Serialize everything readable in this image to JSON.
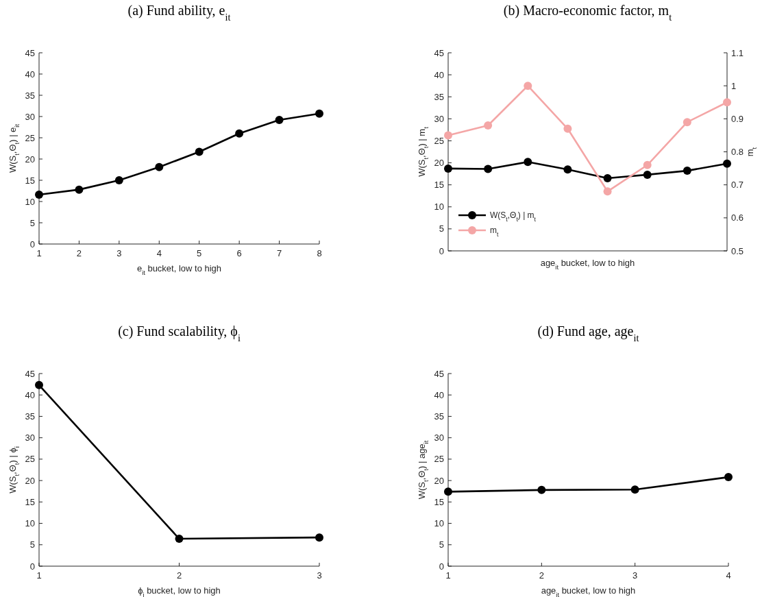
{
  "chart_data": [
    {
      "type": "line",
      "title": "(a) Fund ability, e$_{it}$",
      "xlabel": "e$_{it}$ bucket, low to high",
      "ylabel": "W(S$_{t}$,Θ$_{t}$) | e$_{it}$",
      "x": [
        1,
        2,
        3,
        4,
        5,
        6,
        7,
        8
      ],
      "xlim": [
        1,
        8
      ],
      "xticks": [
        1,
        2,
        3,
        4,
        5,
        6,
        7,
        8
      ],
      "ylim": [
        0,
        45
      ],
      "yticks": [
        0,
        5,
        10,
        15,
        20,
        25,
        30,
        35,
        40,
        45
      ],
      "marker": "circle",
      "series": [
        {
          "color": "#000000",
          "values": [
            11.6,
            12.8,
            15.0,
            18.1,
            21.7,
            26.0,
            29.2,
            30.7
          ]
        }
      ]
    },
    {
      "type": "line",
      "title": "(b) Macro-economic factor, m$_{t}$",
      "xlabel": "age$_{it}$ bucket, low to high",
      "ylabel": "W(S$_{t}$,Θ$_{t}$) | m$_{t}$",
      "y2label": "m$_{t}$",
      "categories": [
        null,
        null,
        null,
        null,
        null,
        null,
        null,
        null
      ],
      "ylim": [
        0,
        45
      ],
      "yticks": [
        0,
        5,
        10,
        15,
        20,
        25,
        30,
        35,
        40,
        45
      ],
      "y2lim": [
        0.5,
        1.1
      ],
      "y2ticks": [
        0.5,
        0.6,
        0.7,
        0.8,
        0.9,
        1,
        1.1
      ],
      "tick_labels": "y",
      "marker": "circle",
      "legend": "bottom left",
      "series": [
        {
          "name": "W(S$_{t}$,Θ$_{t}$) | m$_{t}$",
          "color": "#000000",
          "values": [
            18.7,
            18.6,
            20.2,
            18.5,
            16.5,
            17.3,
            18.2,
            19.8
          ]
        },
        {
          "name": "m$_{t}$",
          "color": "#f4a6a6",
          "axis": "y2",
          "values": [
            0.85,
            0.88,
            1,
            0.87,
            0.68,
            0.76,
            0.89,
            0.95
          ]
        }
      ]
    },
    {
      "type": "line",
      "title": "(c) Fund scalability, ϕ$_{i}$",
      "xlabel": "ϕ$_{i}$ bucket, low to high",
      "ylabel": "W(S$_{t}$,Θ$_{t}$) | ϕ$_{i}$",
      "x": [
        1,
        2,
        3
      ],
      "xlim": [
        1,
        3
      ],
      "xticks": [
        1,
        2,
        3
      ],
      "ylim": [
        0,
        45
      ],
      "yticks": [
        0,
        5,
        10,
        15,
        20,
        25,
        30,
        35,
        40,
        45
      ],
      "marker": "circle",
      "series": [
        {
          "color": "#000000",
          "values": [
            42.3,
            6.4,
            6.7
          ]
        }
      ]
    },
    {
      "type": "line",
      "title": "(d) Fund age, age$_{it}$",
      "xlabel": "age$_{it}$ bucket, low to high",
      "ylabel": "W(S$_{t}$,Θ$_{t}$) | age$_{it}$",
      "x": [
        1,
        2,
        3,
        4
      ],
      "xlim": [
        1,
        4
      ],
      "xticks": [
        1,
        2,
        3,
        4
      ],
      "ylim": [
        0,
        45
      ],
      "yticks": [
        0,
        5,
        10,
        15,
        20,
        25,
        30,
        35,
        40,
        45
      ],
      "marker": "circle",
      "series": [
        {
          "color": "#000000",
          "values": [
            17.4,
            17.8,
            17.9,
            20.8
          ]
        }
      ]
    }
  ]
}
